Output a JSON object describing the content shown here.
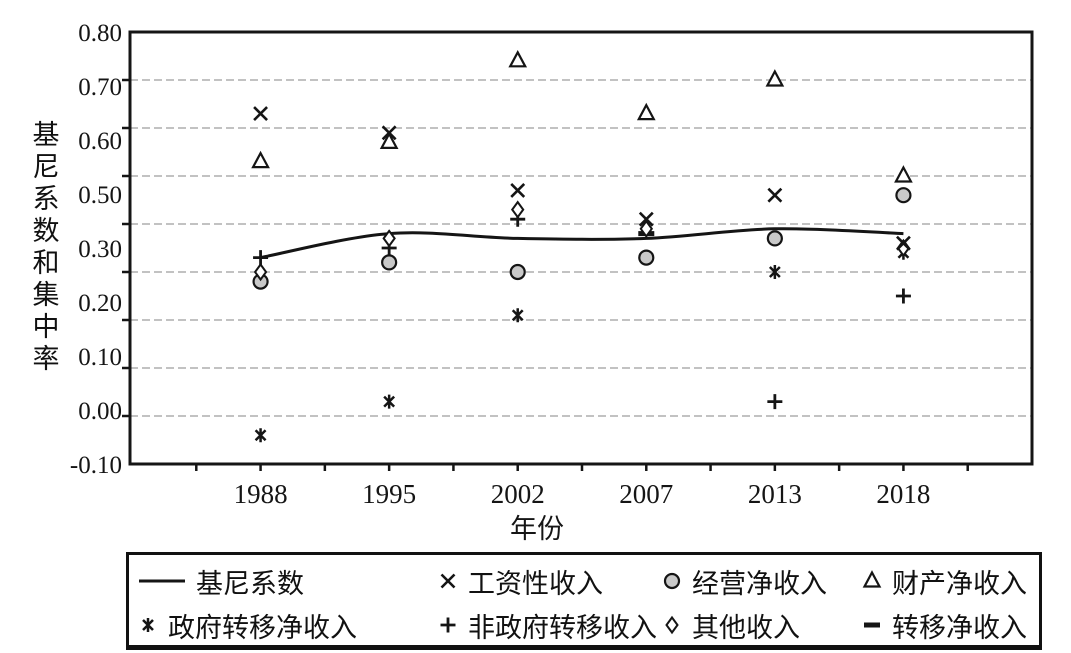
{
  "colors": {
    "ink": "#151515",
    "grid": "#9e9e9e",
    "circle_fill": "#c9c9c9",
    "background": "#ffffff"
  },
  "y_axis": {
    "title": "基尼系数和集中率",
    "tick_labels": [
      "0.80",
      "0.70",
      "0.60",
      "0.50",
      "0.30",
      "0.20",
      "0.10",
      "0.00",
      "-0.10"
    ],
    "note_missing_label": "0.40 gridline present but unlabeled"
  },
  "x_axis": {
    "title": "年份",
    "categories": [
      "1988",
      "1995",
      "2002",
      "2007",
      "2013",
      "2018"
    ]
  },
  "chart_data": {
    "type": "scatter",
    "title": "",
    "xlabel": "年份",
    "ylabel": "基尼系数和集中率",
    "categories": [
      "1988",
      "1995",
      "2002",
      "2007",
      "2013",
      "2018"
    ],
    "ylim": [
      -0.1,
      0.8
    ],
    "grid": "horizontal-dashed",
    "gridline_step": 0.1,
    "legend_position": "bottom-box",
    "series": [
      {
        "name": "基尼系数",
        "marker": "line",
        "values": [
          0.33,
          0.38,
          0.37,
          0.37,
          0.39,
          0.38
        ]
      },
      {
        "name": "工资性收入",
        "marker": "x-cross",
        "values": [
          0.63,
          0.59,
          0.47,
          0.41,
          0.46,
          0.36
        ]
      },
      {
        "name": "经营净收入",
        "marker": "circle",
        "values": [
          0.28,
          0.32,
          0.3,
          0.33,
          0.37,
          0.46
        ]
      },
      {
        "name": "财产净收入",
        "marker": "triangle",
        "values": [
          0.53,
          0.57,
          0.74,
          0.63,
          0.7,
          0.5
        ]
      },
      {
        "name": "政府转移净收入",
        "marker": "asterisk",
        "values": [
          -0.04,
          0.03,
          0.21,
          null,
          0.3,
          0.34
        ]
      },
      {
        "name": "非政府转移收入",
        "marker": "plus",
        "values": [
          0.33,
          0.35,
          0.41,
          null,
          0.03,
          0.25
        ]
      },
      {
        "name": "其他收入",
        "marker": "diamond",
        "values": [
          0.3,
          0.37,
          0.43,
          0.39,
          null,
          0.35
        ]
      },
      {
        "name": "转移净收入",
        "marker": "dash",
        "values": [
          null,
          null,
          null,
          0.38,
          null,
          null
        ]
      }
    ]
  },
  "legend": {
    "rows": [
      [
        {
          "marker": "line",
          "label": "基尼系数"
        },
        {
          "marker": "x-cross",
          "label": "工资性收入"
        },
        {
          "marker": "circle",
          "label": "经营净收入"
        },
        {
          "marker": "triangle",
          "label": "财产净收入"
        }
      ],
      [
        {
          "marker": "asterisk",
          "label": "政府转移净收入"
        },
        {
          "marker": "plus",
          "label": "非政府转移收入"
        },
        {
          "marker": "diamond",
          "label": "其他收入"
        },
        {
          "marker": "dash",
          "label": "转移净收入"
        }
      ]
    ]
  }
}
